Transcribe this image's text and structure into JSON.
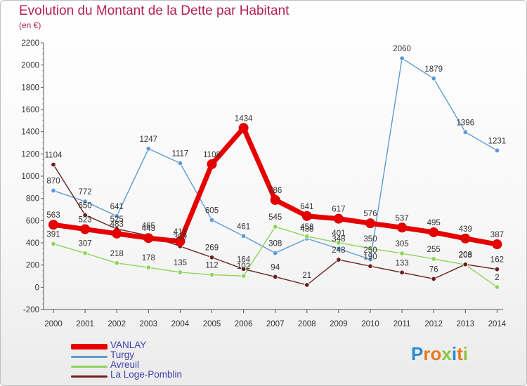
{
  "title": "Evolution du Montant de la Dette par Habitant",
  "subtitle": "(en €)",
  "brand": {
    "text": "Proxiti",
    "letters": [
      {
        "ch": "P",
        "color": "#2a8bd0"
      },
      {
        "ch": "r",
        "color": "#e8791e"
      },
      {
        "ch": "o",
        "color": "#e8791e"
      },
      {
        "ch": "x",
        "color": "#8cc63f"
      },
      {
        "ch": "i",
        "color": "#2a8bd0"
      },
      {
        "ch": "t",
        "color": "#e8791e"
      },
      {
        "ch": "i",
        "color": "#8cc63f"
      }
    ]
  },
  "chart_data": {
    "type": "line",
    "x": [
      2000,
      2001,
      2002,
      2003,
      2004,
      2005,
      2006,
      2007,
      2008,
      2009,
      2010,
      2011,
      2012,
      2013,
      2014
    ],
    "ylim": [
      -200,
      2200
    ],
    "yticks": [
      -200,
      0,
      200,
      400,
      600,
      800,
      1000,
      1200,
      1400,
      1600,
      1800,
      2000,
      2200
    ],
    "grid": false,
    "legend": "bottom-left",
    "series": [
      {
        "name": "VANLAY",
        "color": "#e60000",
        "thick": true,
        "values": [
          563,
          523,
          483,
          443,
          413,
          1108,
          1434,
          786,
          641,
          617,
          576,
          537,
          495,
          439,
          387
        ]
      },
      {
        "name": "Turgy",
        "color": "#5b9bd5",
        "thick": false,
        "values": [
          870,
          772,
          641,
          1247,
          1117,
          605,
          461,
          308,
          438,
          348,
          250,
          2060,
          1879,
          1396,
          1231
        ]
      },
      {
        "name": "Avreuil",
        "color": "#8fd45a",
        "thick": false,
        "values": [
          391,
          307,
          218,
          178,
          135,
          112,
          102,
          545,
          458,
          401,
          350,
          305,
          255,
          203,
          2
        ]
      },
      {
        "name": "La Loge-Pomblin",
        "color": "#6b1f1f",
        "thick": false,
        "values": [
          1104,
          650,
          525,
          465,
          369,
          269,
          164,
          94,
          21,
          248,
          190,
          133,
          76,
          206,
          162
        ]
      }
    ]
  }
}
